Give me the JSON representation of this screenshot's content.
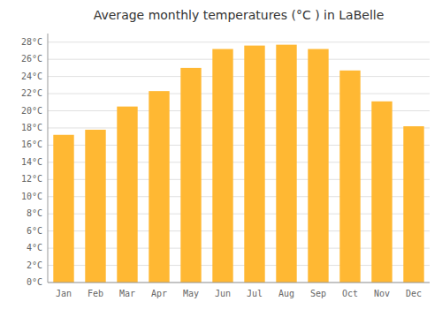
{
  "chart_data": {
    "type": "bar",
    "title": "Average monthly temperatures (°C ) in LaBelle",
    "categories": [
      "Jan",
      "Feb",
      "Mar",
      "Apr",
      "May",
      "Jun",
      "Jul",
      "Aug",
      "Sep",
      "Oct",
      "Nov",
      "Dec"
    ],
    "values": [
      17.2,
      17.8,
      20.5,
      22.3,
      25.0,
      27.2,
      27.6,
      27.7,
      27.2,
      24.7,
      21.1,
      18.2
    ],
    "color": "#FFB833",
    "ylim": [
      0,
      29
    ],
    "yticks": [
      {
        "value": 0,
        "label": "0°C"
      },
      {
        "value": 2,
        "label": "2°C"
      },
      {
        "value": 4,
        "label": "4°C"
      },
      {
        "value": 6,
        "label": "6°C"
      },
      {
        "value": 8,
        "label": "8°C"
      },
      {
        "value": 10,
        "label": "10°C"
      },
      {
        "value": 12,
        "label": "12°C"
      },
      {
        "value": 14,
        "label": "14°C"
      },
      {
        "value": 16,
        "label": "16°C"
      },
      {
        "value": 18,
        "label": "18°C"
      },
      {
        "value": 20,
        "label": "20°C"
      },
      {
        "value": 22,
        "label": "22°C"
      },
      {
        "value": 24,
        "label": "24°C"
      },
      {
        "value": 26,
        "label": "26°C"
      },
      {
        "value": 28,
        "label": "28°C"
      }
    ],
    "grid": true
  }
}
